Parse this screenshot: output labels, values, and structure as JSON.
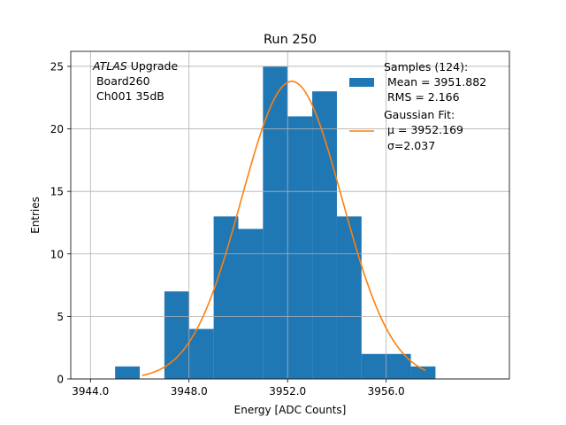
{
  "chart_data": {
    "type": "bar",
    "title": "Run 250",
    "xlabel": "Energy [ADC Counts]",
    "ylabel": "Entries",
    "xlim": [
      3943.2,
      3961.0
    ],
    "ylim": [
      0,
      26.2
    ],
    "grid": true,
    "xticks": [
      3944,
      3948,
      3952,
      3956
    ],
    "xtick_labels": [
      "3944.0",
      "3948.0",
      "3952.0",
      "3956.0"
    ],
    "yticks": [
      0,
      5,
      10,
      15,
      20,
      25
    ],
    "ytick_labels": [
      "0",
      "5",
      "10",
      "15",
      "20",
      "25"
    ],
    "bin_edges": [
      3945,
      3946,
      3947,
      3948,
      3949,
      3950,
      3951,
      3952,
      3953,
      3954,
      3955,
      3956,
      3957,
      3958
    ],
    "counts": [
      1,
      0,
      7,
      4,
      13,
      12,
      25,
      21,
      23,
      13,
      2,
      2,
      1
    ],
    "bar_color": "#1f77b4",
    "fit": {
      "amplitude": 23.8,
      "mu": 3952.169,
      "sigma": 2.037,
      "x_range": [
        3946.1,
        3957.6
      ],
      "color": "#ff7f0e"
    },
    "annotation": {
      "italic": "ATLAS",
      "rest": " Upgrade",
      "line2": " Board260",
      "line3": " Ch001 35dB"
    },
    "legend": {
      "position": "upper right",
      "samples": [
        "Samples (124):",
        " Mean = 3951.882",
        " RMS = 2.166"
      ],
      "fit": [
        "Gaussian Fit:",
        " μ = 3952.169",
        " σ=2.037"
      ]
    }
  }
}
